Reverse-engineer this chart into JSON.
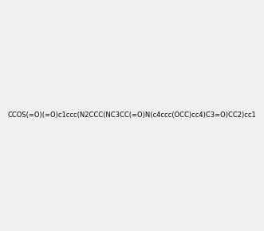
{
  "smiles": "CCOS(=O)(=O)c1ccc(N2CCC(NC3CC(=O)N(c4ccc(OCC)cc4)C3=O)CC2)cc1",
  "image_size": 300,
  "background_color": "#f0f0f0",
  "title": "",
  "atom_colors": {
    "N": "blue",
    "O": "red",
    "S": "yellow"
  }
}
